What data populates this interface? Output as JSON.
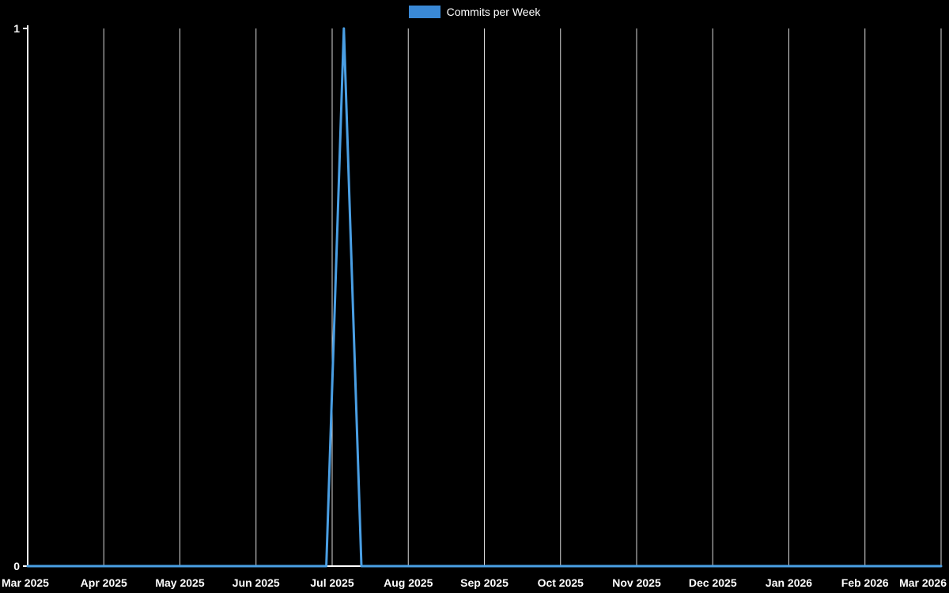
{
  "legend": {
    "label": "Commits per Week"
  },
  "chart_data": {
    "type": "line",
    "title": "Commits per Week",
    "background": "#000000",
    "axis_color": "#ffffff",
    "grid_color": "#d9d9d9",
    "text_color": "#ffffff",
    "legend_swatch_color": "#3a89d6",
    "legend_position": "top-center",
    "grid": "vertical-only",
    "x_unit": "week",
    "x_description": "Weekly data points spanning Mar 2025 to Mar 2026; a single week in mid-July 2025 has 1 commit, all other weeks have 0.",
    "x_tick_labels": [
      "Mar 2025",
      "Apr 2025",
      "May 2025",
      "Jun 2025",
      "Jul 2025",
      "Aug 2025",
      "Sep 2025",
      "Oct 2025",
      "Nov 2025",
      "Dec 2025",
      "Jan 2026",
      "Feb 2026",
      "Mar 2026"
    ],
    "y_ticks": [
      0,
      1
    ],
    "ylim": [
      0,
      1
    ],
    "series": [
      {
        "name": "Commits per Week",
        "color": "#4a9fe4",
        "values": [
          0,
          0,
          0,
          0,
          0,
          0,
          0,
          0,
          0,
          0,
          0,
          0,
          0,
          0,
          0,
          0,
          0,
          0,
          1,
          0,
          0,
          0,
          0,
          0,
          0,
          0,
          0,
          0,
          0,
          0,
          0,
          0,
          0,
          0,
          0,
          0,
          0,
          0,
          0,
          0,
          0,
          0,
          0,
          0,
          0,
          0,
          0,
          0,
          0,
          0,
          0,
          0,
          0
        ]
      }
    ]
  }
}
